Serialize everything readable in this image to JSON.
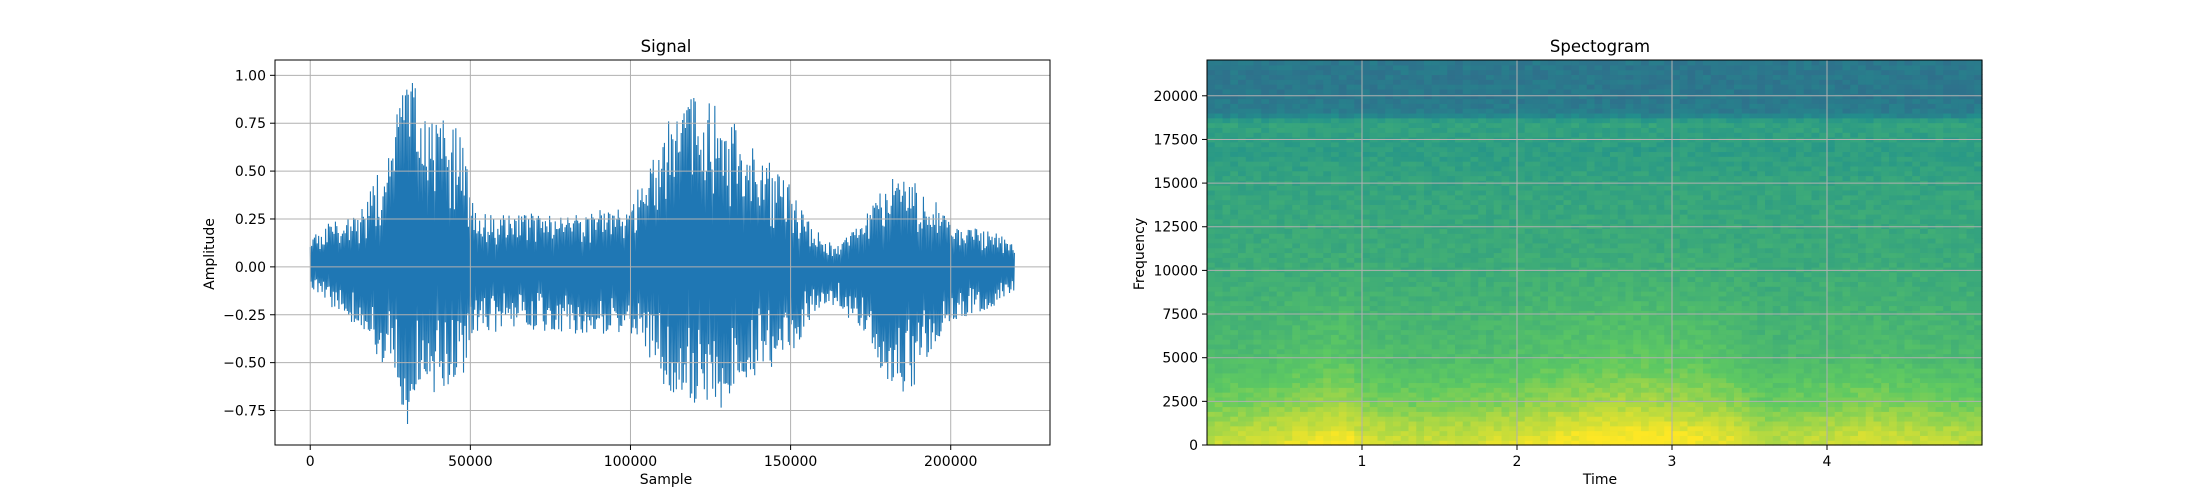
{
  "chart_data": [
    {
      "type": "line",
      "title": "Signal",
      "xlabel": "Sample",
      "ylabel": "Amplitude",
      "xlim": [
        -11000,
        231000
      ],
      "ylim": [
        -0.93,
        1.08
      ],
      "xticks": [
        0,
        50000,
        100000,
        150000,
        200000
      ],
      "yticks": [
        -0.75,
        -0.5,
        -0.25,
        0.0,
        0.25,
        0.5,
        0.75,
        1.0
      ],
      "xtick_labels": [
        "0",
        "50000",
        "100000",
        "150000",
        "200000"
      ],
      "ytick_labels": [
        "−0.75",
        "−0.50",
        "−0.25",
        "0.00",
        "0.25",
        "0.50",
        "0.75",
        "1.00"
      ],
      "grid": true,
      "line_color": "#1f77b4",
      "series": [
        {
          "x": [
            0,
            5000,
            10000,
            15000,
            20000,
            25000,
            28000,
            30000,
            32000,
            35000,
            40000,
            45000,
            48000,
            50000,
            55000,
            60000,
            70000,
            80000,
            90000,
            100000,
            105000,
            110000,
            115000,
            118000,
            120000,
            123000,
            130000,
            140000,
            150000,
            155000,
            160000,
            165000,
            170000,
            175000,
            180000,
            185000,
            190000,
            200000,
            210000,
            220000
          ],
          "upper": [
            0.16,
            0.22,
            0.26,
            0.27,
            0.45,
            0.6,
            0.92,
            1.0,
            1.0,
            0.75,
            0.82,
            0.75,
            0.7,
            0.35,
            0.3,
            0.27,
            0.28,
            0.27,
            0.3,
            0.3,
            0.55,
            0.72,
            0.85,
            0.9,
            0.98,
            0.88,
            0.83,
            0.6,
            0.45,
            0.3,
            0.15,
            0.12,
            0.2,
            0.3,
            0.45,
            0.5,
            0.45,
            0.25,
            0.22,
            0.12
          ],
          "lower": [
            -0.1,
            -0.2,
            -0.27,
            -0.3,
            -0.45,
            -0.58,
            -0.67,
            -0.87,
            -0.7,
            -0.65,
            -0.7,
            -0.6,
            -0.55,
            -0.35,
            -0.33,
            -0.35,
            -0.33,
            -0.35,
            -0.35,
            -0.37,
            -0.45,
            -0.62,
            -0.8,
            -0.72,
            -0.72,
            -0.7,
            -0.75,
            -0.55,
            -0.5,
            -0.3,
            -0.2,
            -0.22,
            -0.3,
            -0.38,
            -0.62,
            -0.67,
            -0.6,
            -0.3,
            -0.25,
            -0.12
          ]
        }
      ]
    },
    {
      "type": "heatmap",
      "title": "Spectogram",
      "xlabel": "Time",
      "ylabel": "Frequency",
      "xlim": [
        0,
        5
      ],
      "ylim": [
        0,
        22050
      ],
      "xticks": [
        1,
        2,
        3,
        4
      ],
      "yticks": [
        0,
        2500,
        5000,
        7500,
        10000,
        12500,
        15000,
        17500,
        20000
      ],
      "xtick_labels": [
        "1",
        "2",
        "3",
        "4"
      ],
      "ytick_labels": [
        "0",
        "2500",
        "5000",
        "7500",
        "10000",
        "12500",
        "15000",
        "17500",
        "20000"
      ],
      "grid": true,
      "colormap": "viridis",
      "colormap_stops": [
        "#440154",
        "#3b528b",
        "#21918c",
        "#5ec962",
        "#fde725"
      ],
      "time_profile": {
        "t": [
          0,
          0.3,
          0.6,
          0.9,
          1.0,
          1.3,
          1.6,
          1.9,
          2.2,
          2.5,
          2.8,
          3.1,
          3.4,
          3.6,
          3.9,
          4.2,
          4.5,
          4.8,
          5.0
        ],
        "energy": [
          0.45,
          0.5,
          0.62,
          0.72,
          0.55,
          0.48,
          0.5,
          0.55,
          0.65,
          0.75,
          0.78,
          0.72,
          0.6,
          0.4,
          0.45,
          0.55,
          0.5,
          0.45,
          0.42
        ]
      },
      "freq_profile": {
        "f": [
          0,
          1000,
          2500,
          5000,
          7500,
          10000,
          12500,
          15000,
          17000,
          18500,
          19000,
          20000,
          22050
        ],
        "level": [
          0.95,
          0.9,
          0.8,
          0.7,
          0.66,
          0.62,
          0.6,
          0.58,
          0.55,
          0.58,
          0.42,
          0.4,
          0.4
        ]
      }
    }
  ]
}
